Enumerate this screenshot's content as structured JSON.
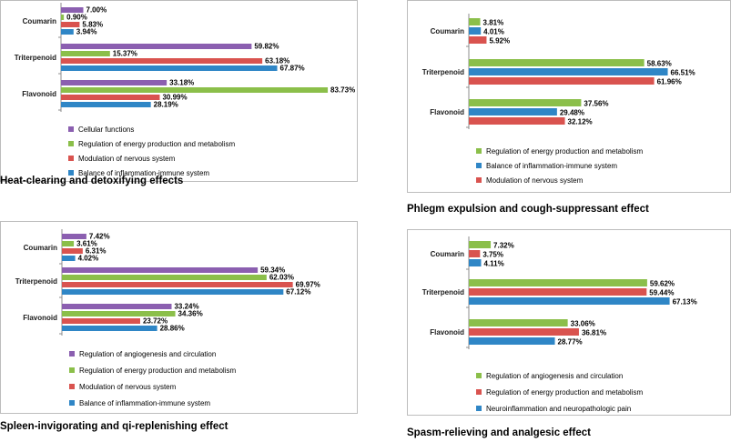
{
  "colors": {
    "Cellular functions": "#8b5fb0",
    "Regulation of energy production and metabolism": "#8bbf4a",
    "Modulation of nervous system": "#d9534f",
    "Balance of inflammation-immune system": "#2f86c6",
    "Regulation of angiogenesis and circulation": "#8b5fb0",
    "Neuroinflammation and neuropathologic pain": "#2f86c6"
  },
  "chart_data": [
    {
      "type": "bar",
      "orientation": "horizontal",
      "title": "Heat-clearing and detoxifying effects",
      "categories": [
        "Coumarin",
        "Triterpenoid",
        "Flavonoid"
      ],
      "value_unit": "%",
      "xlim": [
        0,
        90
      ],
      "legend_position": "bottom-left",
      "series": [
        {
          "name": "Cellular functions",
          "values": [
            7.0,
            59.82,
            33.18
          ],
          "labels": [
            "7.00%",
            "59.82%",
            "33.18%"
          ]
        },
        {
          "name": "Regulation of energy production and metabolism",
          "values": [
            0.9,
            15.37,
            83.73
          ],
          "labels": [
            "0.90%",
            "15.37%",
            "83.73%"
          ]
        },
        {
          "name": "Modulation of nervous system",
          "values": [
            5.83,
            63.18,
            30.99
          ],
          "labels": [
            "5.83%",
            "63.18%",
            "30.99%"
          ]
        },
        {
          "name": "Balance of inflammation-immune system",
          "values": [
            3.94,
            67.87,
            28.19
          ],
          "labels": [
            "3.94%",
            "67.87%",
            "28.19%"
          ]
        }
      ]
    },
    {
      "type": "bar",
      "orientation": "horizontal",
      "title": "Phlegm expulsion and cough-suppressant effect",
      "categories": [
        "Coumarin",
        "Triterpenoid",
        "Flavonoid"
      ],
      "value_unit": "%",
      "xlim": [
        0,
        70
      ],
      "legend_position": "bottom-left",
      "series": [
        {
          "name": "Regulation of energy production and metabolism",
          "values": [
            3.81,
            58.63,
            37.56
          ],
          "labels": [
            "3.81%",
            "58.63%",
            "37.56%"
          ]
        },
        {
          "name": "Balance of inflammation-immune system",
          "values": [
            4.01,
            66.51,
            29.48
          ],
          "labels": [
            "4.01%",
            "66.51%",
            "29.48%"
          ]
        },
        {
          "name": "Modulation of nervous system",
          "values": [
            5.92,
            61.96,
            32.12
          ],
          "labels": [
            "5.92%",
            "61.96%",
            "32.12%"
          ]
        }
      ]
    },
    {
      "type": "bar",
      "orientation": "horizontal",
      "title": "Spleen-invigorating and qi-replenishing effect",
      "categories": [
        "Coumarin",
        "Triterpenoid",
        "Flavonoid"
      ],
      "value_unit": "%",
      "xlim": [
        0,
        80
      ],
      "legend_position": "bottom-left",
      "series": [
        {
          "name": "Regulation of angiogenesis and circulation",
          "values": [
            7.42,
            59.34,
            33.24
          ],
          "labels": [
            "7.42%",
            "59.34%",
            "33.24%"
          ]
        },
        {
          "name": "Regulation of energy production and metabolism",
          "values": [
            3.61,
            62.03,
            34.36
          ],
          "labels": [
            "3.61%",
            "62.03%",
            "34.36%"
          ]
        },
        {
          "name": "Modulation of nervous system",
          "values": [
            6.31,
            69.97,
            23.72
          ],
          "labels": [
            "6.31%",
            "69.97%",
            "23.72%"
          ]
        },
        {
          "name": "Balance of inflammation-immune system",
          "values": [
            4.02,
            67.12,
            28.86
          ],
          "labels": [
            "4.02%",
            "67.12%",
            "28.86%"
          ]
        }
      ]
    },
    {
      "type": "bar",
      "orientation": "horizontal",
      "title": "Spasm-relieving and analgesic effect",
      "categories": [
        "Coumarin",
        "Triterpenoid",
        "Flavonoid"
      ],
      "value_unit": "%",
      "xlim": [
        0,
        70
      ],
      "legend_position": "bottom-left",
      "series": [
        {
          "name": "Regulation of angiogenesis and circulation",
          "values": [
            7.32,
            59.62,
            33.06
          ],
          "labels": [
            "7.32%",
            "59.62%",
            "33.06%"
          ],
          "color_key": "Regulation of energy production and metabolism"
        },
        {
          "name": "Regulation of energy production and metabolism",
          "values": [
            3.75,
            59.44,
            36.81
          ],
          "labels": [
            "3.75%",
            "59.44%",
            "36.81%"
          ],
          "color_key": "Modulation of nervous system"
        },
        {
          "name": "Neuroinflammation and neuropathologic pain",
          "values": [
            4.11,
            67.13,
            28.77
          ],
          "labels": [
            "4.11%",
            "67.13%",
            "28.77%"
          ]
        }
      ]
    }
  ]
}
